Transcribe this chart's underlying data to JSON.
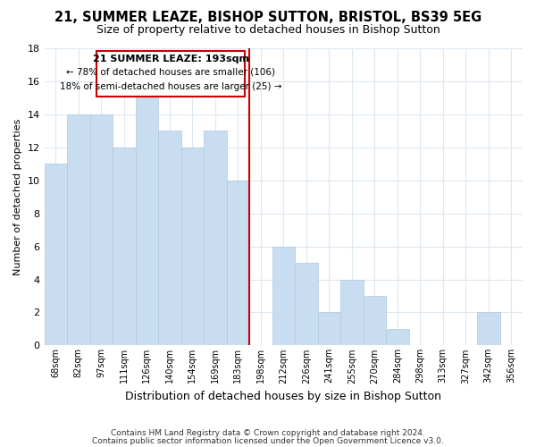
{
  "title": "21, SUMMER LEAZE, BISHOP SUTTON, BRISTOL, BS39 5EG",
  "subtitle": "Size of property relative to detached houses in Bishop Sutton",
  "xlabel": "Distribution of detached houses by size in Bishop Sutton",
  "ylabel": "Number of detached properties",
  "bin_labels": [
    "68sqm",
    "82sqm",
    "97sqm",
    "111sqm",
    "126sqm",
    "140sqm",
    "154sqm",
    "169sqm",
    "183sqm",
    "198sqm",
    "212sqm",
    "226sqm",
    "241sqm",
    "255sqm",
    "270sqm",
    "284sqm",
    "298sqm",
    "313sqm",
    "327sqm",
    "342sqm",
    "356sqm"
  ],
  "bar_heights": [
    11,
    14,
    14,
    12,
    15,
    13,
    12,
    13,
    10,
    0,
    6,
    5,
    2,
    4,
    3,
    1,
    0,
    0,
    0,
    2,
    0
  ],
  "bar_color": "#c8ddf0",
  "bar_edge_color": "#aec8e0",
  "reference_line_label": "21 SUMMER LEAZE: 193sqm",
  "annotation_line1": "← 78% of detached houses are smaller (106)",
  "annotation_line2": "18% of semi-detached houses are larger (25) →",
  "annotation_box_color": "#ffffff",
  "annotation_box_edge": "#cc0000",
  "reference_line_color": "#cc0000",
  "ylim": [
    0,
    18
  ],
  "yticks": [
    0,
    2,
    4,
    6,
    8,
    10,
    12,
    14,
    16,
    18
  ],
  "footnote1": "Contains HM Land Registry data © Crown copyright and database right 2024.",
  "footnote2": "Contains public sector information licensed under the Open Government Licence v3.0.",
  "background_color": "#ffffff",
  "grid_color": "#dce8f0",
  "title_fontsize": 10.5,
  "subtitle_fontsize": 9
}
